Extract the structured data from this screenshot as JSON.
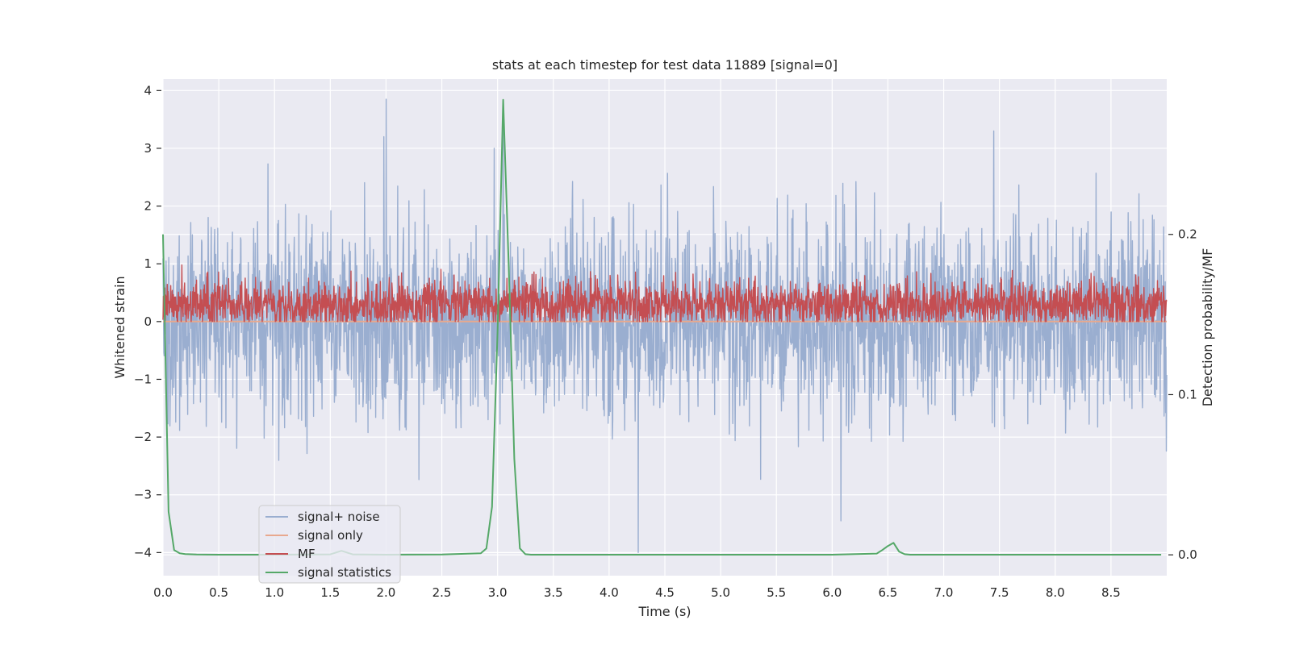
{
  "chart_data": {
    "type": "line",
    "title": "stats at each timestep for test data 11889 [signal=0]",
    "xlabel": "Time (s)",
    "ylabel": "Whitened strain",
    "y2label": "Detection probability/MF",
    "xlim": [
      0,
      9.0
    ],
    "ylim": [
      -4.4,
      4.2
    ],
    "y2lim": [
      -0.013,
      0.297
    ],
    "x_ticks": [
      0.0,
      0.5,
      1.0,
      1.5,
      2.0,
      2.5,
      3.0,
      3.5,
      4.0,
      4.5,
      5.0,
      5.5,
      6.0,
      6.5,
      7.0,
      7.5,
      8.0,
      8.5
    ],
    "x_tick_labels": [
      "0.0",
      "0.5",
      "1.0",
      "1.5",
      "2.0",
      "2.5",
      "3.0",
      "3.5",
      "4.0",
      "4.5",
      "5.0",
      "5.5",
      "6.0",
      "6.5",
      "7.0",
      "7.5",
      "8.0",
      "8.5"
    ],
    "y_ticks": [
      4,
      3,
      2,
      1,
      0,
      -1,
      -2,
      -3,
      -4
    ],
    "y_tick_labels": [
      "4",
      "3",
      "2",
      "1",
      "0",
      "−1",
      "−2",
      "−3",
      "−4"
    ],
    "y2_ticks": [
      0.2,
      0.1,
      0.0
    ],
    "y2_tick_labels": [
      "0.2",
      "0.1",
      "0.0"
    ],
    "grid": true,
    "legend_position": "lower-left",
    "series": [
      {
        "name": "signal+ noise",
        "color": "#9aaed0",
        "axis": "left",
        "style": "dense-noise",
        "noise_sigma": 0.85,
        "notable_peaks": [
          [
            2.0,
            3.85
          ],
          [
            3.05,
            3.6
          ],
          [
            7.45,
            3.3
          ],
          [
            4.26,
            -4.0
          ],
          [
            6.08,
            -3.45
          ],
          [
            1.98,
            3.2
          ]
        ]
      },
      {
        "name": "signal only",
        "color": "#e8a88e",
        "axis": "left",
        "x": [
          0.0,
          9.0
        ],
        "y": [
          0.0,
          0.0
        ]
      },
      {
        "name": "MF",
        "color": "#c44e52",
        "axis": "left",
        "style": "dense-noise",
        "baseline": 0.3,
        "noise_sigma": 0.2,
        "range": [
          0.0,
          0.98
        ]
      },
      {
        "name": "signal statistics",
        "color": "#55a868",
        "axis": "right",
        "x": [
          0.0,
          0.05,
          0.1,
          0.15,
          0.2,
          0.3,
          0.5,
          1.0,
          1.5,
          1.6,
          1.7,
          2.0,
          2.5,
          2.85,
          2.9,
          2.95,
          3.0,
          3.05,
          3.1,
          3.15,
          3.2,
          3.25,
          3.3,
          3.5,
          4.0,
          5.0,
          6.0,
          6.4,
          6.45,
          6.5,
          6.55,
          6.6,
          6.65,
          6.7,
          7.0,
          8.0,
          8.95
        ],
        "y": [
          0.2,
          0.027,
          0.003,
          0.001,
          0.0005,
          0.0002,
          0.0001,
          0.0001,
          0.0003,
          0.0025,
          0.0003,
          0.0001,
          0.0002,
          0.001,
          0.004,
          0.03,
          0.14,
          0.284,
          0.18,
          0.06,
          0.004,
          0.0004,
          0.0001,
          0.0001,
          0.0001,
          0.0001,
          0.0001,
          0.0008,
          0.003,
          0.0055,
          0.0075,
          0.002,
          0.0004,
          0.0001,
          0.0001,
          0.0001,
          0.0001
        ]
      }
    ]
  }
}
